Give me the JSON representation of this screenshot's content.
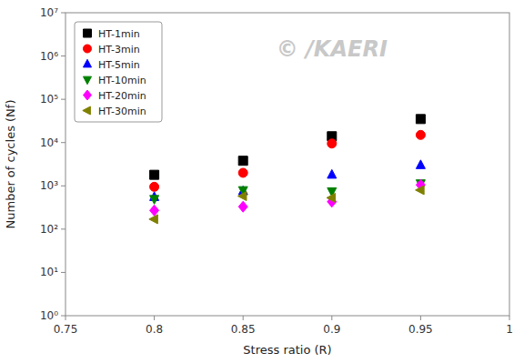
{
  "chart_data": {
    "type": "scatter",
    "xlabel": "Stress ratio (R)",
    "ylabel": "Number of cycles (Nf)",
    "annotation": "© /KAERI",
    "log": "y",
    "grid": false,
    "legend": "upper left",
    "xlim": [
      0.75,
      1.0
    ],
    "ylim": [
      1,
      10000000
    ],
    "xticks": [
      0.75,
      0.8,
      0.85,
      0.9,
      0.95,
      1
    ],
    "yticks": [
      {
        "value": 1,
        "label": "10⁰"
      },
      {
        "value": 10,
        "label": "10¹"
      },
      {
        "value": 100,
        "label": "10²"
      },
      {
        "value": 1000,
        "label": "10³"
      },
      {
        "value": 10000,
        "label": "10⁴"
      },
      {
        "value": 100000,
        "label": "10⁵"
      },
      {
        "value": 1000000,
        "label": "10⁶"
      },
      {
        "value": 10000000,
        "label": "10⁷"
      }
    ],
    "series": [
      {
        "name": "HT-1min",
        "color": "black",
        "marker": "square",
        "x": [
          0.8,
          0.85,
          0.9,
          0.95
        ],
        "values": [
          1800,
          3800,
          14000,
          35000
        ]
      },
      {
        "name": "HT-3min",
        "color": "red",
        "marker": "circle",
        "x": [
          0.8,
          0.85,
          0.9,
          0.95
        ],
        "values": [
          950,
          2000,
          9500,
          15000
        ]
      },
      {
        "name": "HT-5min",
        "color": "blue",
        "marker": "triangle-up",
        "x": [
          0.8,
          0.85,
          0.9,
          0.95
        ],
        "values": [
          550,
          750,
          1800,
          3000
        ]
      },
      {
        "name": "HT-10min",
        "color": "green",
        "marker": "triangle-down",
        "x": [
          0.8,
          0.85,
          0.9,
          0.95
        ],
        "values": [
          500,
          800,
          750,
          1150
        ]
      },
      {
        "name": "HT-20min",
        "color": "magenta",
        "marker": "diamond",
        "x": [
          0.8,
          0.85,
          0.9,
          0.95
        ],
        "values": [
          270,
          330,
          430,
          1050
        ]
      },
      {
        "name": "HT-30min",
        "color": "#808000",
        "marker": "triangle-left",
        "x": [
          0.8,
          0.85,
          0.9,
          0.95
        ],
        "values": [
          170,
          580,
          530,
          800
        ]
      }
    ]
  }
}
